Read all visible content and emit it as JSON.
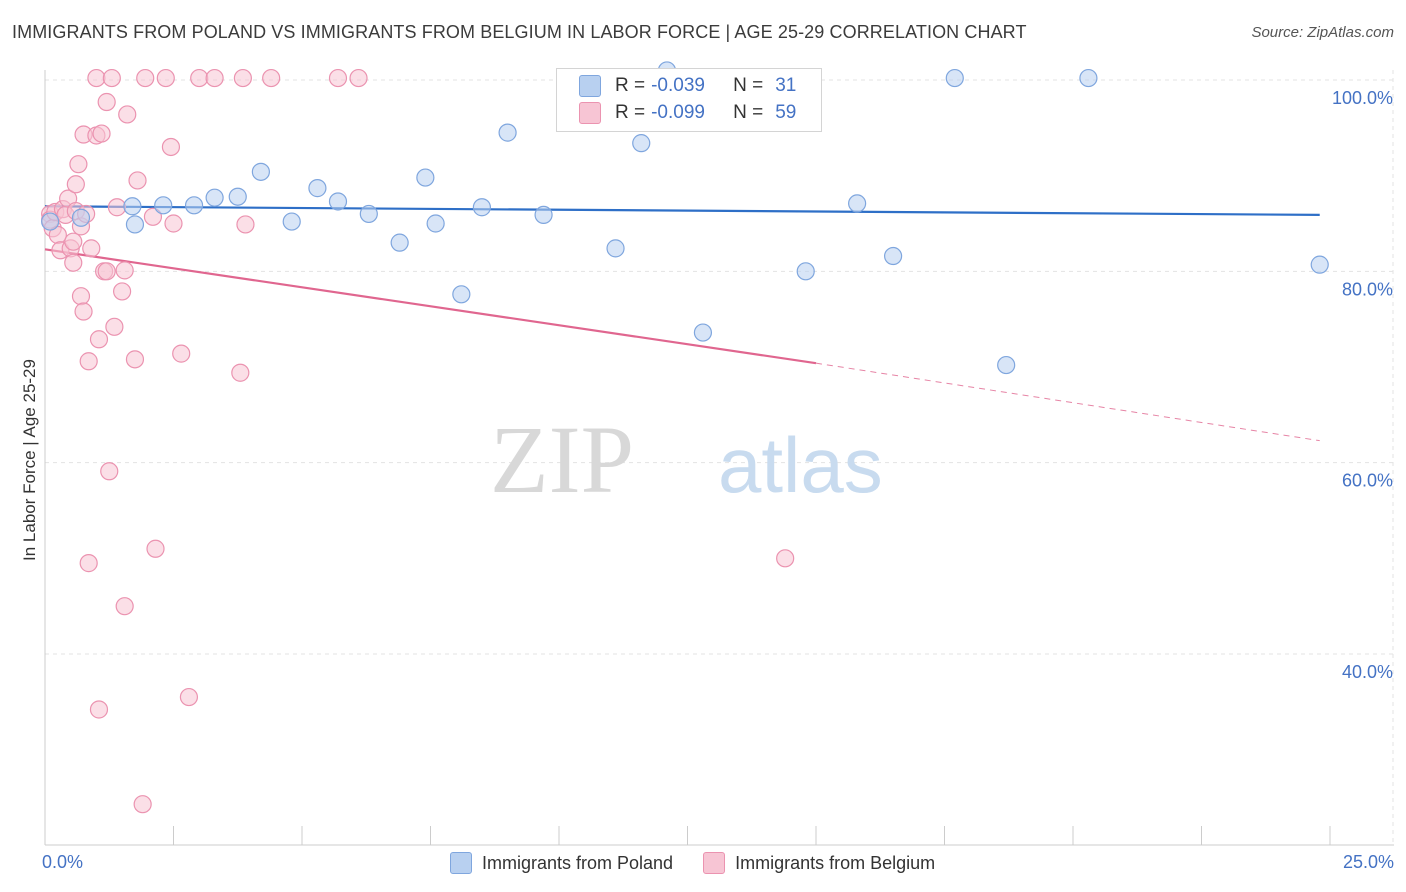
{
  "title": "IMMIGRANTS FROM POLAND VS IMMIGRANTS FROM BELGIUM IN LABOR FORCE | AGE 25-29 CORRELATION CHART",
  "source": "Source: ZipAtlas.com",
  "watermark": {
    "zip": "ZIP",
    "atlas": "atlas"
  },
  "colors": {
    "poland_fill": "#b8d0f0",
    "poland_stroke": "#7fa6de",
    "poland_line": "#2e6fc7",
    "belgium_fill": "#f7c5d4",
    "belgium_stroke": "#eb93b0",
    "belgium_line": "#e0668f",
    "axis_label": "#4472c4",
    "grid": "#e3e3e3"
  },
  "stats": {
    "poland": {
      "r_label": "R =",
      "r_value": "-0.039",
      "n_label": "N =",
      "n_value": "31"
    },
    "belgium": {
      "r_label": "R =",
      "r_value": "-0.099",
      "n_label": "N =",
      "n_value": "59"
    }
  },
  "legend": {
    "poland": "Immigrants from Poland",
    "belgium": "Immigrants from Belgium"
  },
  "x_axis": {
    "min_label": "0.0%",
    "max_label": "25.0%"
  },
  "chart_data": {
    "type": "scatter",
    "title": "IMMIGRANTS FROM POLAND VS IMMIGRANTS FROM BELGIUM IN LABOR FORCE | AGE 25-29 CORRELATION CHART",
    "xlabel": "",
    "ylabel": "In Labor Force | Age 25-29",
    "xlim": [
      0,
      25
    ],
    "ylim": [
      20,
      102
    ],
    "y_ticks": [
      40,
      60,
      80,
      100
    ],
    "y_tick_labels": [
      "40.0%",
      "60.0%",
      "80.0%",
      "100.0%"
    ],
    "grid": true,
    "series": [
      {
        "name": "Immigrants from Poland",
        "points": [
          [
            0.1,
            85.2
          ],
          [
            0.7,
            85.6
          ],
          [
            1.7,
            86.8
          ],
          [
            1.75,
            84.9
          ],
          [
            2.3,
            86.9
          ],
          [
            2.9,
            86.9
          ],
          [
            3.3,
            87.7
          ],
          [
            3.75,
            87.8
          ],
          [
            4.2,
            90.4
          ],
          [
            4.8,
            85.2
          ],
          [
            5.3,
            88.7
          ],
          [
            5.7,
            87.3
          ],
          [
            6.3,
            86.0
          ],
          [
            6.9,
            83.0
          ],
          [
            7.4,
            89.8
          ],
          [
            7.6,
            85.0
          ],
          [
            8.1,
            77.6
          ],
          [
            8.5,
            86.7
          ],
          [
            9.0,
            94.5
          ],
          [
            9.7,
            85.9
          ],
          [
            11.1,
            82.4
          ],
          [
            11.6,
            93.4
          ],
          [
            12.1,
            101.0
          ],
          [
            12.8,
            73.6
          ],
          [
            14.8,
            80.0
          ],
          [
            15.8,
            87.1
          ],
          [
            16.5,
            81.6
          ],
          [
            17.7,
            100.2
          ],
          [
            18.7,
            70.2
          ],
          [
            20.3,
            100.2
          ],
          [
            24.8,
            80.7
          ]
        ],
        "trend": {
          "x": [
            0,
            24.8
          ],
          "y": [
            86.8,
            85.9
          ]
        }
      },
      {
        "name": "Immigrants from Belgium",
        "points": [
          [
            0.1,
            86.0
          ],
          [
            0.1,
            85.4
          ],
          [
            0.15,
            84.5
          ],
          [
            0.2,
            86.2
          ],
          [
            0.25,
            83.8
          ],
          [
            0.3,
            82.2
          ],
          [
            0.35,
            86.5
          ],
          [
            0.4,
            85.9
          ],
          [
            0.45,
            87.6
          ],
          [
            0.5,
            82.4
          ],
          [
            0.55,
            83.1
          ],
          [
            0.55,
            80.9
          ],
          [
            0.6,
            89.1
          ],
          [
            0.6,
            86.3
          ],
          [
            0.65,
            91.2
          ],
          [
            0.7,
            77.4
          ],
          [
            0.7,
            84.7
          ],
          [
            0.75,
            75.8
          ],
          [
            0.75,
            94.3
          ],
          [
            0.8,
            86.0
          ],
          [
            0.85,
            70.6
          ],
          [
            0.85,
            49.5
          ],
          [
            0.9,
            82.4
          ],
          [
            1.0,
            94.2
          ],
          [
            1.0,
            100.2
          ],
          [
            1.05,
            72.9
          ],
          [
            1.05,
            34.2
          ],
          [
            1.1,
            94.4
          ],
          [
            1.15,
            80.0
          ],
          [
            1.2,
            80.0
          ],
          [
            1.2,
            97.7
          ],
          [
            1.25,
            59.1
          ],
          [
            1.3,
            100.2
          ],
          [
            1.35,
            74.2
          ],
          [
            1.4,
            86.7
          ],
          [
            1.5,
            77.9
          ],
          [
            1.55,
            45.0
          ],
          [
            1.55,
            80.1
          ],
          [
            1.6,
            96.4
          ],
          [
            1.75,
            70.8
          ],
          [
            1.8,
            89.5
          ],
          [
            1.9,
            24.3
          ],
          [
            1.95,
            100.2
          ],
          [
            2.1,
            85.7
          ],
          [
            2.15,
            51.0
          ],
          [
            2.35,
            100.2
          ],
          [
            2.45,
            93.0
          ],
          [
            2.5,
            85.0
          ],
          [
            2.65,
            71.4
          ],
          [
            2.8,
            35.5
          ],
          [
            3.0,
            100.2
          ],
          [
            3.3,
            100.2
          ],
          [
            3.8,
            69.4
          ],
          [
            3.85,
            100.2
          ],
          [
            3.9,
            84.9
          ],
          [
            4.4,
            100.2
          ],
          [
            5.7,
            100.2
          ],
          [
            6.1,
            100.2
          ],
          [
            14.4,
            50.0
          ]
        ],
        "trend": {
          "x": [
            0,
            15
          ],
          "y": [
            82.3,
            70.4
          ]
        },
        "trend_dashed": {
          "x": [
            15,
            24.8
          ],
          "y": [
            70.4,
            62.3
          ]
        }
      }
    ]
  }
}
